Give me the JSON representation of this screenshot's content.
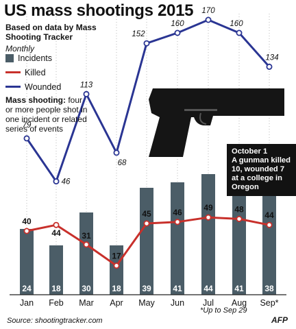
{
  "title": "US mass shootings 2015",
  "subtitle": "Based on data by Mass Shooting Tracker",
  "period": "Monthly",
  "legend": [
    {
      "label": "Incidents",
      "kind": "bar",
      "color": "#4b5d67"
    },
    {
      "label": "Killed",
      "kind": "line",
      "color": "#c8302b"
    },
    {
      "label": "Wounded",
      "kind": "line",
      "color": "#2a3593"
    }
  ],
  "definition": {
    "lead": "Mass shooting:",
    "text": " four or more people shot in one incident or related series of events"
  },
  "callout": {
    "lines": [
      "October 1",
      "A gunman killed",
      "10, wounded 7",
      "at a college in",
      "Oregon"
    ]
  },
  "footnote": "*Up to Sep 29",
  "source": "Source: shootingtracker.com",
  "logo": "AFP",
  "chart_data": {
    "type": "bar",
    "categories": [
      "Jan",
      "Feb",
      "Mar",
      "Apr",
      "May",
      "Jun",
      "Jul",
      "Aug",
      "Sep*"
    ],
    "series": [
      {
        "name": "Incidents",
        "type": "bar",
        "color": "#4b5d67",
        "values": [
          24,
          18,
          30,
          18,
          39,
          41,
          44,
          41,
          38
        ]
      },
      {
        "name": "Killed",
        "type": "line",
        "color": "#c8302b",
        "values": [
          40,
          44,
          31,
          17,
          45,
          46,
          49,
          48,
          44
        ]
      },
      {
        "name": "Wounded",
        "type": "line",
        "color": "#2a3593",
        "values": [
          79,
          46,
          113,
          68,
          152,
          160,
          170,
          160,
          134
        ]
      }
    ],
    "grid": false
  }
}
